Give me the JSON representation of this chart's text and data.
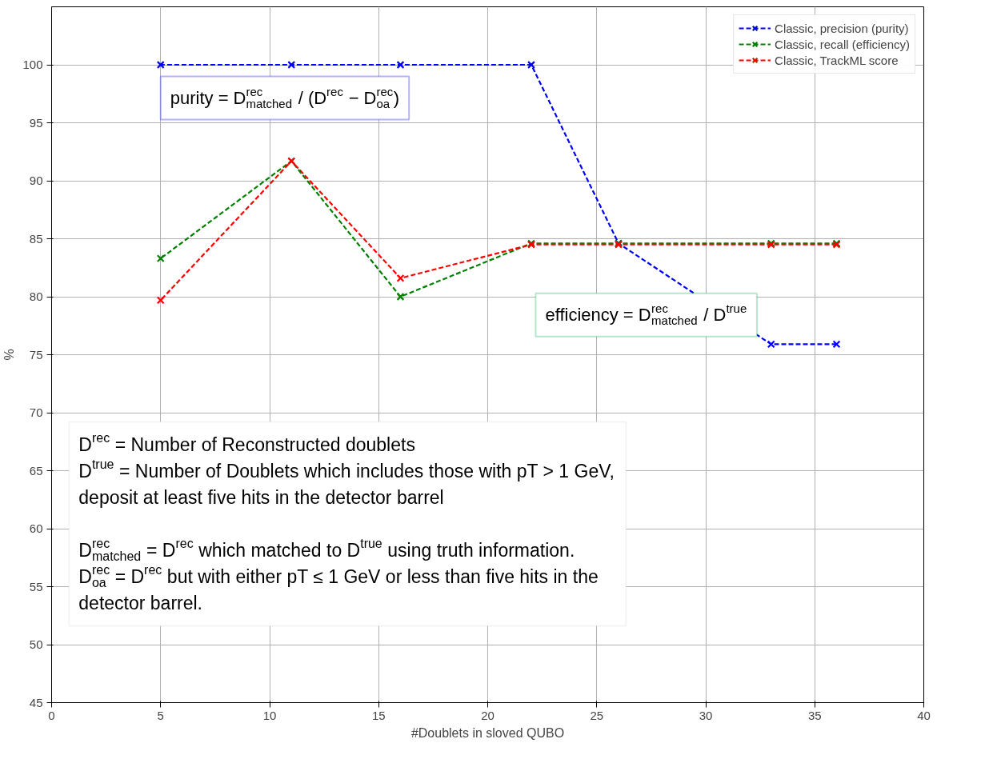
{
  "chart_data": {
    "type": "line",
    "xlabel": "#Doublets in sloved QUBO",
    "ylabel": "%",
    "x": [
      5,
      11,
      16,
      22,
      26,
      33,
      36
    ],
    "series": [
      {
        "name": "Classic, precision (purity)",
        "color": "#0000ff",
        "values": [
          100,
          100,
          100,
          100,
          84.6,
          75.9,
          75.9
        ]
      },
      {
        "name": "Classic, recall (efficiency)",
        "color": "#008000",
        "values": [
          83.3,
          91.7,
          80,
          84.6,
          84.6,
          84.6,
          84.6
        ]
      },
      {
        "name": "Classic, TrackML score",
        "color": "#ff0000",
        "values": [
          79.7,
          91.7,
          81.6,
          84.5,
          84.5,
          84.5,
          84.5
        ]
      }
    ],
    "xlim": [
      0,
      40
    ],
    "xticks": [
      0,
      5,
      10,
      15,
      20,
      25,
      30,
      35,
      40
    ],
    "ylim": [
      45,
      105
    ],
    "yticks": [
      45,
      50,
      55,
      60,
      65,
      70,
      75,
      80,
      85,
      90,
      95,
      100
    ],
    "grid": true,
    "legend": "top right",
    "marker": "cross",
    "line_style": "dashed",
    "annotations": [
      "purity = D$^{rec}$$_{matched}$ / (D$^{rec}$ − D$^{rec}$$_{oa}$)",
      "efficiency = D$^{rec}$$_{matched}$ / D$^{true}$",
      "D$^{rec}$ = Number of Reconstructed doublets\nD$^{true}$ = Number of Doublets which includes those with pT > 1 GeV,\ndeposit at least five hits in the detector barrel\n\nD$^{rec}$$_{matched}$ = D$^{rec}$ which matched to D$^{true}$ using truth information.\nD$^{rec}$$_{oa}$ = D$^{rec}$ but with either pT ≤ 1 GeV or less than five hits in the\ndetector barrel."
    ]
  }
}
